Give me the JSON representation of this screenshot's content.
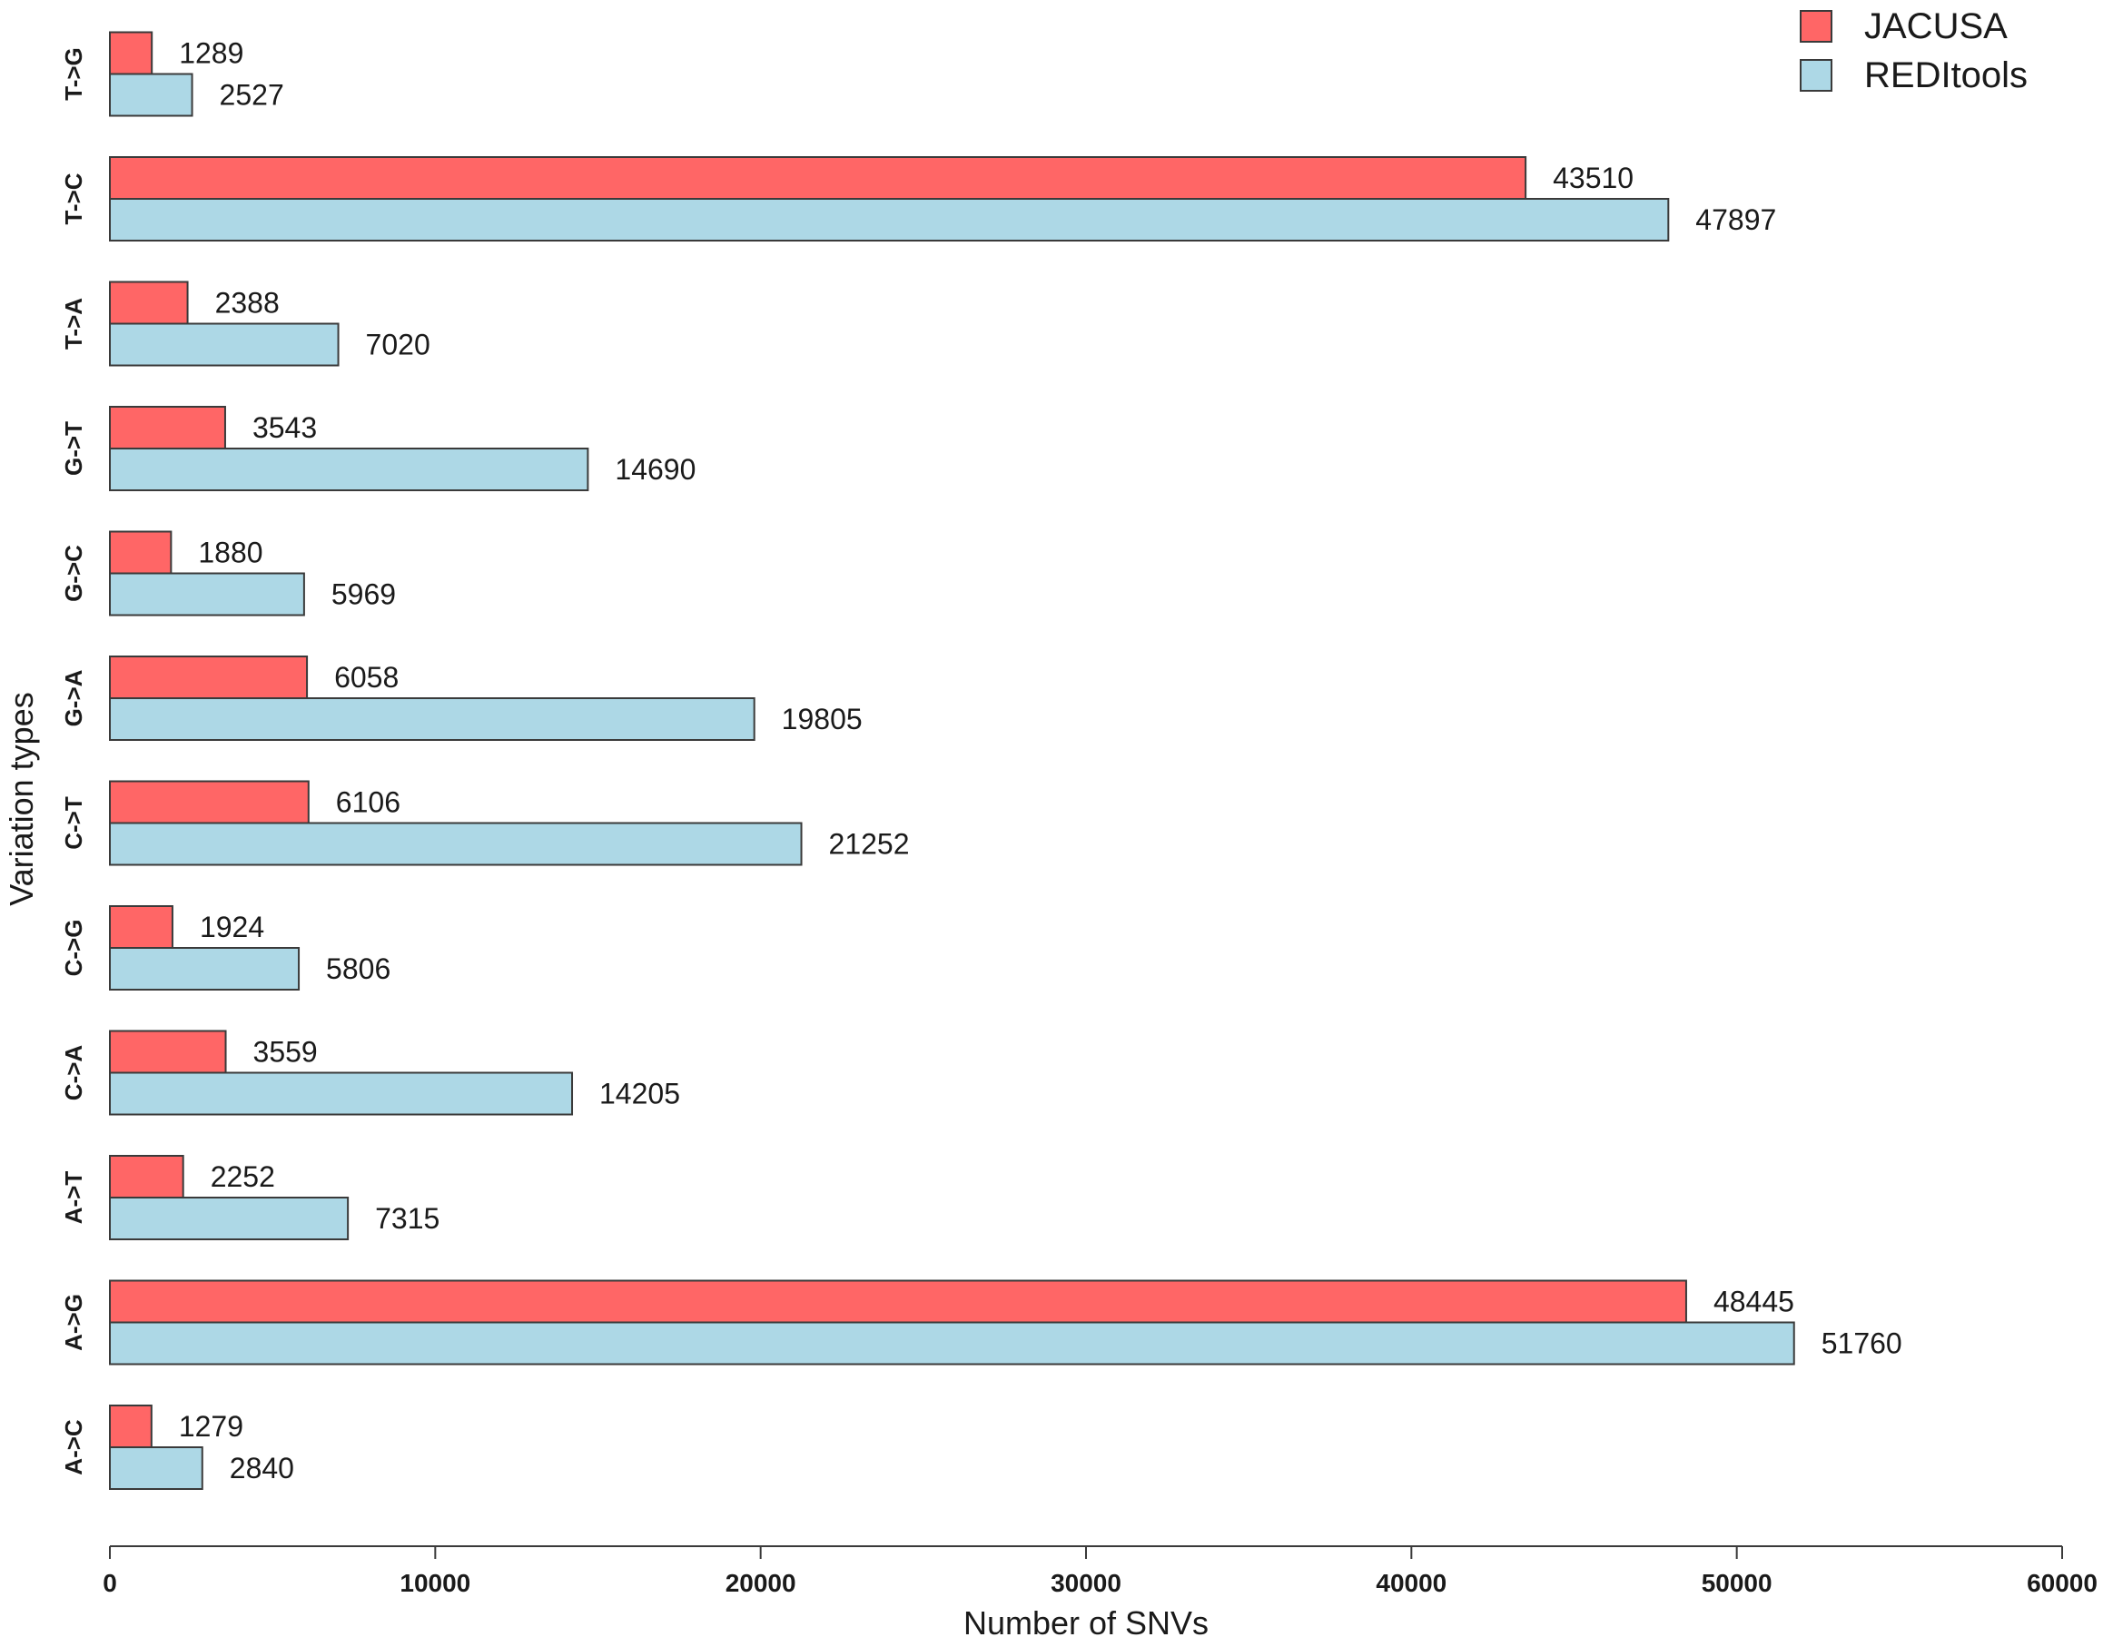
{
  "chart_data": {
    "type": "bar",
    "orientation": "horizontal",
    "categories": [
      "A->C",
      "A->G",
      "A->T",
      "C->A",
      "C->G",
      "C->T",
      "G->A",
      "G->C",
      "G->T",
      "T->A",
      "T->C",
      "T->G"
    ],
    "series": [
      {
        "name": "JACUSA",
        "color": "#ff6666",
        "values": [
          1279,
          48445,
          2252,
          3559,
          1924,
          6106,
          6058,
          1880,
          3543,
          2388,
          43510,
          1289
        ]
      },
      {
        "name": "REDItools",
        "color": "#add8e6",
        "values": [
          2840,
          51760,
          7315,
          14205,
          5806,
          21252,
          19805,
          5969,
          14690,
          7020,
          47897,
          2527
        ]
      }
    ],
    "xlabel": "Number of SNVs",
    "ylabel": "Variation types",
    "xlim": [
      0,
      60000
    ],
    "xticks": [
      0,
      10000,
      20000,
      30000,
      40000,
      50000,
      60000
    ],
    "xtick_labels": [
      "0",
      "10000",
      "20000",
      "30000",
      "40000",
      "50000",
      "60000"
    ],
    "legend_position": "top-right",
    "grid": false
  }
}
